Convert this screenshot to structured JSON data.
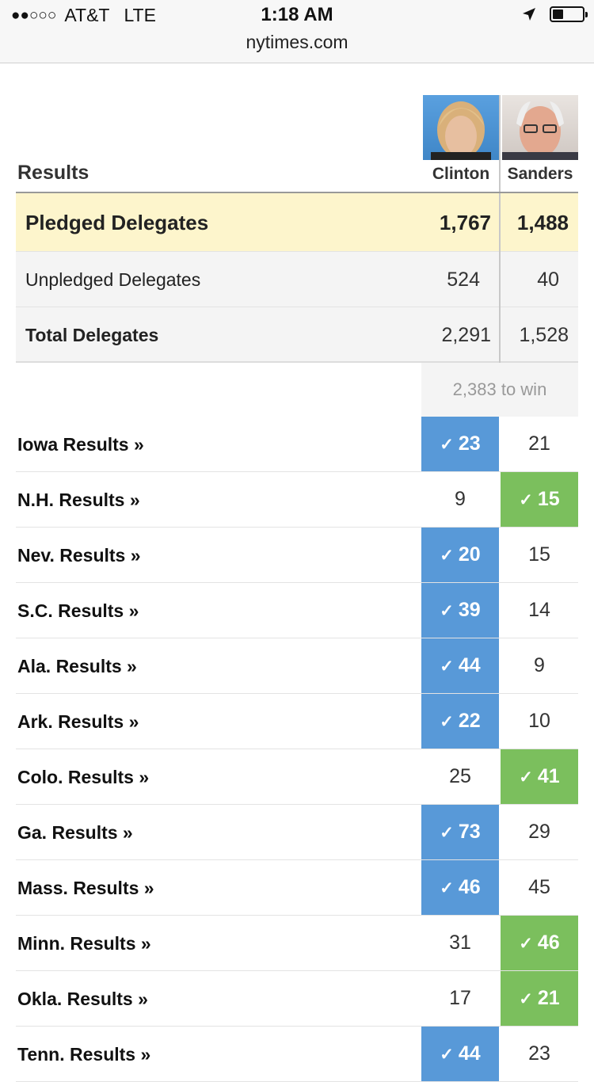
{
  "status_bar": {
    "signal": "●●○○○",
    "carrier": "AT&T",
    "network": "LTE",
    "time": "1:18 AM",
    "url": "nytimes.com",
    "battery_level": 0.35
  },
  "table": {
    "title": "Results",
    "candidates": [
      "Clinton",
      "Sanders"
    ],
    "summary": [
      {
        "label": "Pledged Delegates",
        "clinton": "1,767",
        "sanders": "1,488"
      },
      {
        "label": "Unpledged Delegates",
        "clinton": "524",
        "sanders": "40"
      },
      {
        "label": "Total Delegates",
        "clinton": "2,291",
        "sanders": "1,528"
      }
    ],
    "to_win": "2,383 to win",
    "states": [
      {
        "label": "Iowa Results »",
        "clinton": "23",
        "sanders": "21",
        "winner": "clinton"
      },
      {
        "label": "N.H. Results »",
        "clinton": "9",
        "sanders": "15",
        "winner": "sanders"
      },
      {
        "label": "Nev. Results »",
        "clinton": "20",
        "sanders": "15",
        "winner": "clinton"
      },
      {
        "label": "S.C. Results »",
        "clinton": "39",
        "sanders": "14",
        "winner": "clinton"
      },
      {
        "label": "Ala. Results »",
        "clinton": "44",
        "sanders": "9",
        "winner": "clinton"
      },
      {
        "label": "Ark. Results »",
        "clinton": "22",
        "sanders": "10",
        "winner": "clinton"
      },
      {
        "label": "Colo. Results »",
        "clinton": "25",
        "sanders": "41",
        "winner": "sanders"
      },
      {
        "label": "Ga. Results »",
        "clinton": "73",
        "sanders": "29",
        "winner": "clinton"
      },
      {
        "label": "Mass. Results »",
        "clinton": "46",
        "sanders": "45",
        "winner": "clinton"
      },
      {
        "label": "Minn. Results »",
        "clinton": "31",
        "sanders": "46",
        "winner": "sanders"
      },
      {
        "label": "Okla. Results »",
        "clinton": "17",
        "sanders": "21",
        "winner": "sanders"
      },
      {
        "label": "Tenn. Results »",
        "clinton": "44",
        "sanders": "23",
        "winner": "clinton"
      }
    ]
  },
  "colors": {
    "clinton_win": "#5899d8",
    "sanders_win": "#7bbf5d",
    "pledged_bg": "#fdf5cc"
  }
}
